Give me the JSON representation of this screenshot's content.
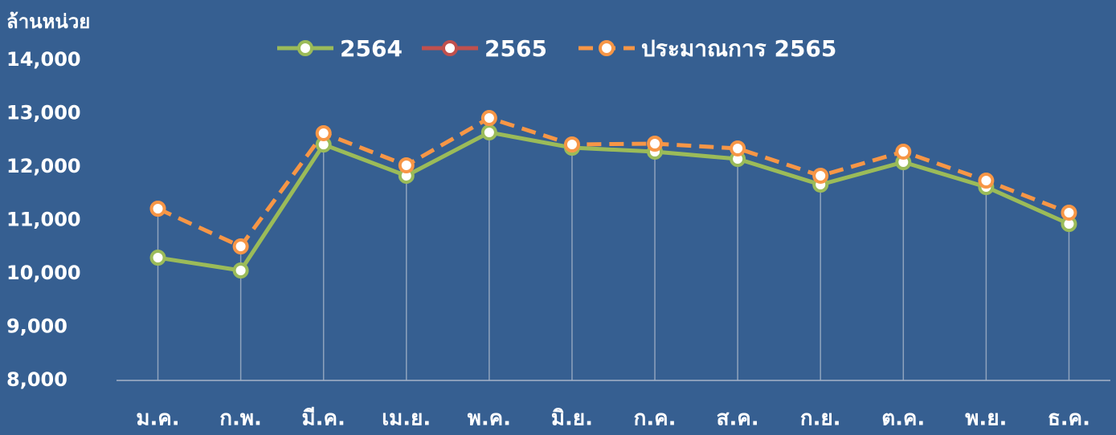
{
  "chart_data": {
    "type": "line",
    "y_axis_label": "ล้านหน่วย",
    "categories": [
      "ม.ค.",
      "ก.พ.",
      "มี.ค.",
      "เม.ย.",
      "พ.ค.",
      "มิ.ย.",
      "ก.ค.",
      "ส.ค.",
      "ก.ย.",
      "ต.ค.",
      "พ.ย.",
      "ธ.ค."
    ],
    "series": [
      {
        "name": "2564",
        "color": "#9bbb59",
        "dashed": false,
        "values": [
          10300,
          10060,
          12420,
          11835,
          12647,
          12361,
          12286,
          12150,
          11669,
          12090,
          11624,
          10932
        ]
      },
      {
        "name": "2565",
        "color": "#c0504d",
        "dashed": false,
        "values": [
          11218,
          null,
          null,
          null,
          null,
          null,
          null,
          null,
          null,
          null,
          null,
          null
        ]
      },
      {
        "name": "ประมาณการ 2565",
        "color": "#f79646",
        "dashed": true,
        "values": [
          11218,
          10511,
          12632,
          12030,
          12917,
          12421,
          12436,
          12346,
          11835,
          12286,
          11744,
          11143
        ]
      }
    ],
    "ylim": [
      8000,
      14000
    ],
    "yticks": [
      {
        "value": 8000,
        "label": "8,000"
      },
      {
        "value": 9000,
        "label": "9,000"
      },
      {
        "value": 10000,
        "label": "10,000"
      },
      {
        "value": 11000,
        "label": "11,000"
      },
      {
        "value": 12000,
        "label": "12,000"
      },
      {
        "value": 13000,
        "label": "13,000"
      },
      {
        "value": 14000,
        "label": "14,000"
      }
    ],
    "drop_lines": true
  }
}
